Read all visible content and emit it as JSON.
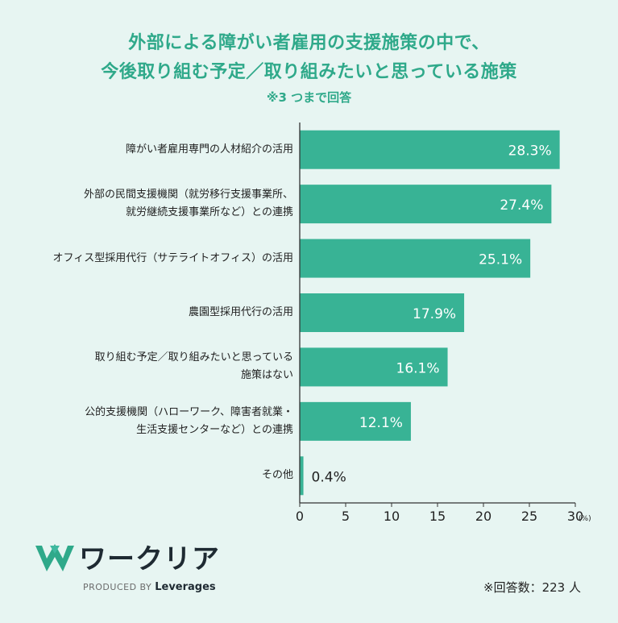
{
  "title": {
    "line1": "外部による障がい者雇用の支援施策の中で、",
    "line2": "今後取り組む予定／取り組みたいと思っている施策",
    "note": "※3 つまで回答"
  },
  "chart_data": {
    "type": "bar",
    "orientation": "horizontal",
    "categories": [
      "障がい者雇用専門の人材紹介の活用",
      "外部の民間支援機関（就労移行支援事業所、就労継続支援事業所など）との連携",
      "オフィス型採用代行（サテライトオフィス）の活用",
      "農園型採用代行の活用",
      "取り組む予定／取り組みたいと思っている施策はない",
      "公的支援機関（ハローワーク、障害者就業・生活支援センターなど）との連携",
      "その他"
    ],
    "category_lines": [
      [
        "障がい者雇用専門の人材紹介の活用"
      ],
      [
        "外部の民間支援機関（就労移行支援事業所、",
        "就労継続支援事業所など）との連携"
      ],
      [
        "オフィス型採用代行（サテライトオフィス）の活用"
      ],
      [
        "農園型採用代行の活用"
      ],
      [
        "取り組む予定／取り組みたいと思っている",
        "施策はない"
      ],
      [
        "公的支援機関（ハローワーク、障害者就業・",
        "生活支援センターなど）との連携"
      ],
      [
        "その他"
      ]
    ],
    "values": [
      28.3,
      27.4,
      25.1,
      17.9,
      16.1,
      12.1,
      0.4
    ],
    "value_labels": [
      "28.3%",
      "27.4%",
      "25.1%",
      "17.9%",
      "16.1%",
      "12.1%",
      "0.4%"
    ],
    "xlim": [
      0,
      30
    ],
    "xticks": [
      "0",
      "5",
      "10",
      "15",
      "20",
      "25",
      "30"
    ],
    "xunit": "(%)",
    "bar_color": "#38b395",
    "grid": false
  },
  "logo": {
    "name": "ワークリア",
    "produced_prefix": "PRODUCED BY",
    "produced_brand": "Leverages"
  },
  "footnote": "※回答数：223 人"
}
